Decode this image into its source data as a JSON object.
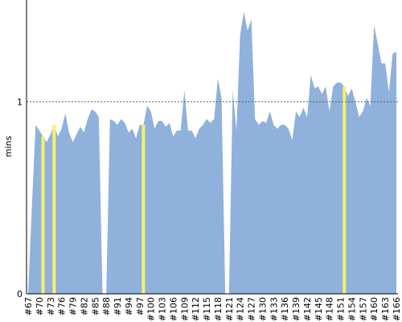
{
  "chart_data": {
    "type": "area",
    "ylabel": "mins",
    "categories": [
      "#67",
      null,
      null,
      "#70",
      null,
      null,
      "#73",
      null,
      null,
      "#76",
      null,
      null,
      "#79",
      null,
      null,
      "#82",
      null,
      null,
      "#85",
      null,
      null,
      "#88",
      null,
      null,
      "#91",
      null,
      null,
      "#94",
      null,
      null,
      "#97",
      null,
      null,
      "#100",
      null,
      null,
      "#103",
      null,
      null,
      "#106",
      null,
      null,
      "#109",
      null,
      null,
      "#112",
      null,
      null,
      "#115",
      null,
      null,
      "#118",
      null,
      null,
      "#121",
      null,
      null,
      "#124",
      null,
      null,
      "#127",
      null,
      null,
      "#130",
      null,
      null,
      "#133",
      null,
      null,
      "#136",
      null,
      null,
      "#139",
      null,
      null,
      "#142",
      null,
      null,
      "#145",
      null,
      null,
      "#148",
      null,
      null,
      "#151",
      null,
      null,
      "#154",
      null,
      null,
      "#157",
      null,
      null,
      "#160",
      null,
      null,
      "#163",
      null,
      null,
      "#166"
    ],
    "values": [
      0,
      0.45,
      0.88,
      0.85,
      0.82,
      0.79,
      0.83,
      0.88,
      0.82,
      0.86,
      0.94,
      0.84,
      0.79,
      0.83,
      0.87,
      0.84,
      0.91,
      0.96,
      0.95,
      0.92,
      0,
      0,
      0.91,
      0.9,
      0.88,
      0.91,
      0.89,
      0.84,
      0.86,
      0.81,
      0.88,
      0.88,
      0.98,
      0.95,
      0.86,
      0.9,
      0.9,
      0.87,
      0.89,
      0.82,
      0.85,
      0.85,
      1.06,
      0.85,
      0.85,
      0.81,
      0.86,
      0.88,
      0.91,
      0.89,
      0.91,
      1.12,
      1.02,
      0,
      0,
      1.06,
      0.85,
      1.35,
      1.47,
      1.37,
      1.43,
      0.91,
      0.88,
      0.9,
      0.89,
      0.95,
      0.88,
      0.86,
      0.88,
      0.88,
      0.86,
      0.8,
      0.95,
      0.92,
      0.97,
      0.92,
      1.14,
      1.07,
      1.08,
      1.04,
      1.08,
      0.95,
      1.08,
      1.1,
      1.1,
      1.08,
      1.03,
      1.07,
      1.0,
      0.92,
      0.95,
      1.02,
      0.98,
      1.4,
      1.3,
      1.2,
      1.2,
      1.05,
      1.25,
      1.26
    ],
    "color": "#8fb1dc",
    "highlight_indices": [
      4,
      7,
      31,
      85
    ],
    "highlight_color": "#f5f06a",
    "ylim": [
      0,
      1.53
    ],
    "yticks": [
      0,
      1
    ],
    "grid": true
  }
}
